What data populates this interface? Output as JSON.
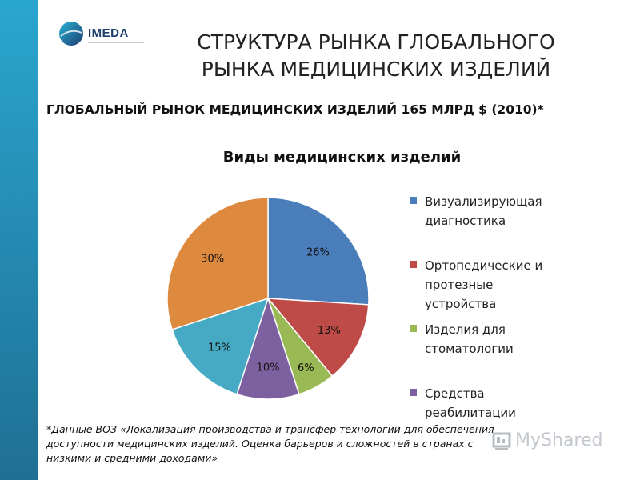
{
  "logo": {
    "text": "IMEDA"
  },
  "title": "СТРУКТУРА РЫНКА ГЛОБАЛЬНОГО РЫНКА МЕДИЦИНСКИХ ИЗДЕЛИЙ",
  "subtitle": "ГЛОБАЛЬНЫЙ РЫНОК МЕДИЦИНСКИХ ИЗДЕЛИЙ 165 МЛРД $ (2010)*",
  "footnote": "*Данные ВОЗ «Локализация производства и трансфер технологий для обеспечения доступности медицинских изделий. Оценка барьеров и сложностей в странах с низкими и средними доходами»",
  "watermark": "MyShared",
  "colors": {
    "sidebar": "#2690b8",
    "logo_mark": "#1b3d6e"
  },
  "chart_data": {
    "type": "pie",
    "title": "Виды медицинских изделий",
    "legend_position": "right",
    "slices": [
      {
        "label": "Визуализирующая диагностика",
        "value": 26,
        "display": "26%",
        "color": "#4a7ebb"
      },
      {
        "label": "Ортопедические и протезные устройства",
        "value": 13,
        "display": "13%",
        "color": "#be4b48"
      },
      {
        "label": "Изделия для стоматологии",
        "value": 6,
        "display": "6%",
        "color": "#98b954"
      },
      {
        "label": "Средства реабилитации",
        "value": 10,
        "display": "10%",
        "color": "#7d60a0"
      },
      {
        "label": "",
        "value": 15,
        "display": "15%",
        "color": "#46aac5"
      },
      {
        "label": "",
        "value": 30,
        "display": "30%",
        "color": "#dd8a3f"
      }
    ],
    "legend": [
      "Визуализирующая диагностика",
      "Ортопедические и протезные устройства",
      "Изделия для стоматологии",
      "Средства реабилитации"
    ]
  }
}
